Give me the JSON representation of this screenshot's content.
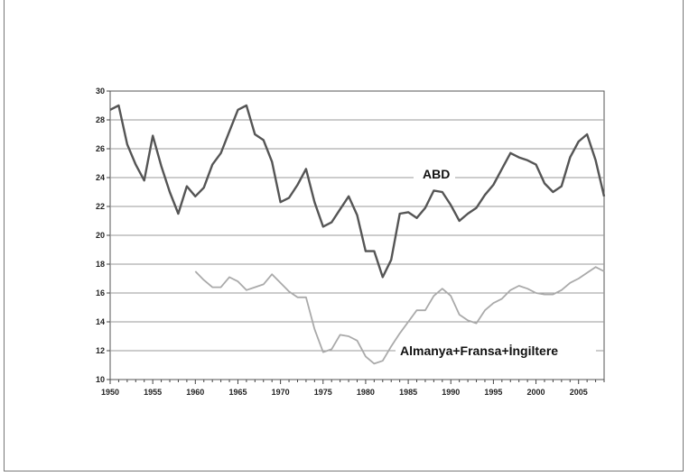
{
  "chart_data": {
    "type": "line",
    "title": "",
    "xlabel": "",
    "ylabel": "",
    "xlim": [
      1950,
      2008
    ],
    "ylim": [
      10,
      30
    ],
    "x_ticks": [
      "1950",
      "1955",
      "1960",
      "1965",
      "1970",
      "1975",
      "1980",
      "1985",
      "1990",
      "1995",
      "2000",
      "2005"
    ],
    "y_ticks": [
      "10",
      "12",
      "14",
      "16",
      "18",
      "20",
      "22",
      "24",
      "26",
      "28",
      "30"
    ],
    "grid": "horizontal",
    "series": [
      {
        "name": "ABD",
        "color": "#555555",
        "x": [
          1950,
          1951,
          1952,
          1953,
          1954,
          1955,
          1956,
          1957,
          1958,
          1959,
          1960,
          1961,
          1962,
          1963,
          1964,
          1965,
          1966,
          1967,
          1968,
          1969,
          1970,
          1971,
          1972,
          1973,
          1974,
          1975,
          1976,
          1977,
          1978,
          1979,
          1980,
          1981,
          1982,
          1983,
          1984,
          1985,
          1986,
          1987,
          1988,
          1989,
          1990,
          1991,
          1992,
          1993,
          1994,
          1995,
          1996,
          1997,
          1998,
          1999,
          2000,
          2001,
          2002,
          2003,
          2004,
          2005,
          2006,
          2007,
          2008
        ],
        "y": [
          28.7,
          29.0,
          26.3,
          24.9,
          23.8,
          26.9,
          24.8,
          23.0,
          21.5,
          23.4,
          22.7,
          23.3,
          24.9,
          25.7,
          27.2,
          28.7,
          29.0,
          27.0,
          26.6,
          25.1,
          22.3,
          22.6,
          23.5,
          24.6,
          22.3,
          20.6,
          20.9,
          21.8,
          22.7,
          21.4,
          18.9,
          18.9,
          17.1,
          18.3,
          21.5,
          21.6,
          21.2,
          21.9,
          23.1,
          23.0,
          22.1,
          21.0,
          21.5,
          21.9,
          22.8,
          23.5,
          24.6,
          25.7,
          25.4,
          25.2,
          24.9,
          23.6,
          23.0,
          23.4,
          25.4,
          26.5,
          27.0,
          25.2,
          22.7
        ]
      },
      {
        "name": "Almanya+Fransa+İngiltere",
        "color": "#aaaaaa",
        "x": [
          1960,
          1961,
          1962,
          1963,
          1964,
          1965,
          1966,
          1967,
          1968,
          1969,
          1970,
          1971,
          1972,
          1973,
          1974,
          1975,
          1976,
          1977,
          1978,
          1979,
          1980,
          1981,
          1982,
          1983,
          1984,
          1985,
          1986,
          1987,
          1988,
          1989,
          1990,
          1991,
          1992,
          1993,
          1994,
          1995,
          1996,
          1997,
          1998,
          1999,
          2000,
          2001,
          2002,
          2003,
          2004,
          2005,
          2006,
          2007,
          2008
        ],
        "y": [
          17.5,
          16.9,
          16.4,
          16.4,
          17.1,
          16.8,
          16.2,
          16.4,
          16.6,
          17.3,
          16.7,
          16.1,
          15.7,
          15.7,
          13.5,
          11.9,
          12.1,
          13.1,
          13.0,
          12.7,
          11.6,
          11.1,
          11.3,
          12.3,
          13.2,
          14.0,
          14.8,
          14.8,
          15.8,
          16.3,
          15.8,
          14.5,
          14.1,
          13.9,
          14.8,
          15.3,
          15.6,
          16.2,
          16.5,
          16.3,
          16.0,
          15.9,
          15.9,
          16.2,
          16.7,
          17.0,
          17.4,
          17.8,
          17.5
        ]
      }
    ]
  }
}
